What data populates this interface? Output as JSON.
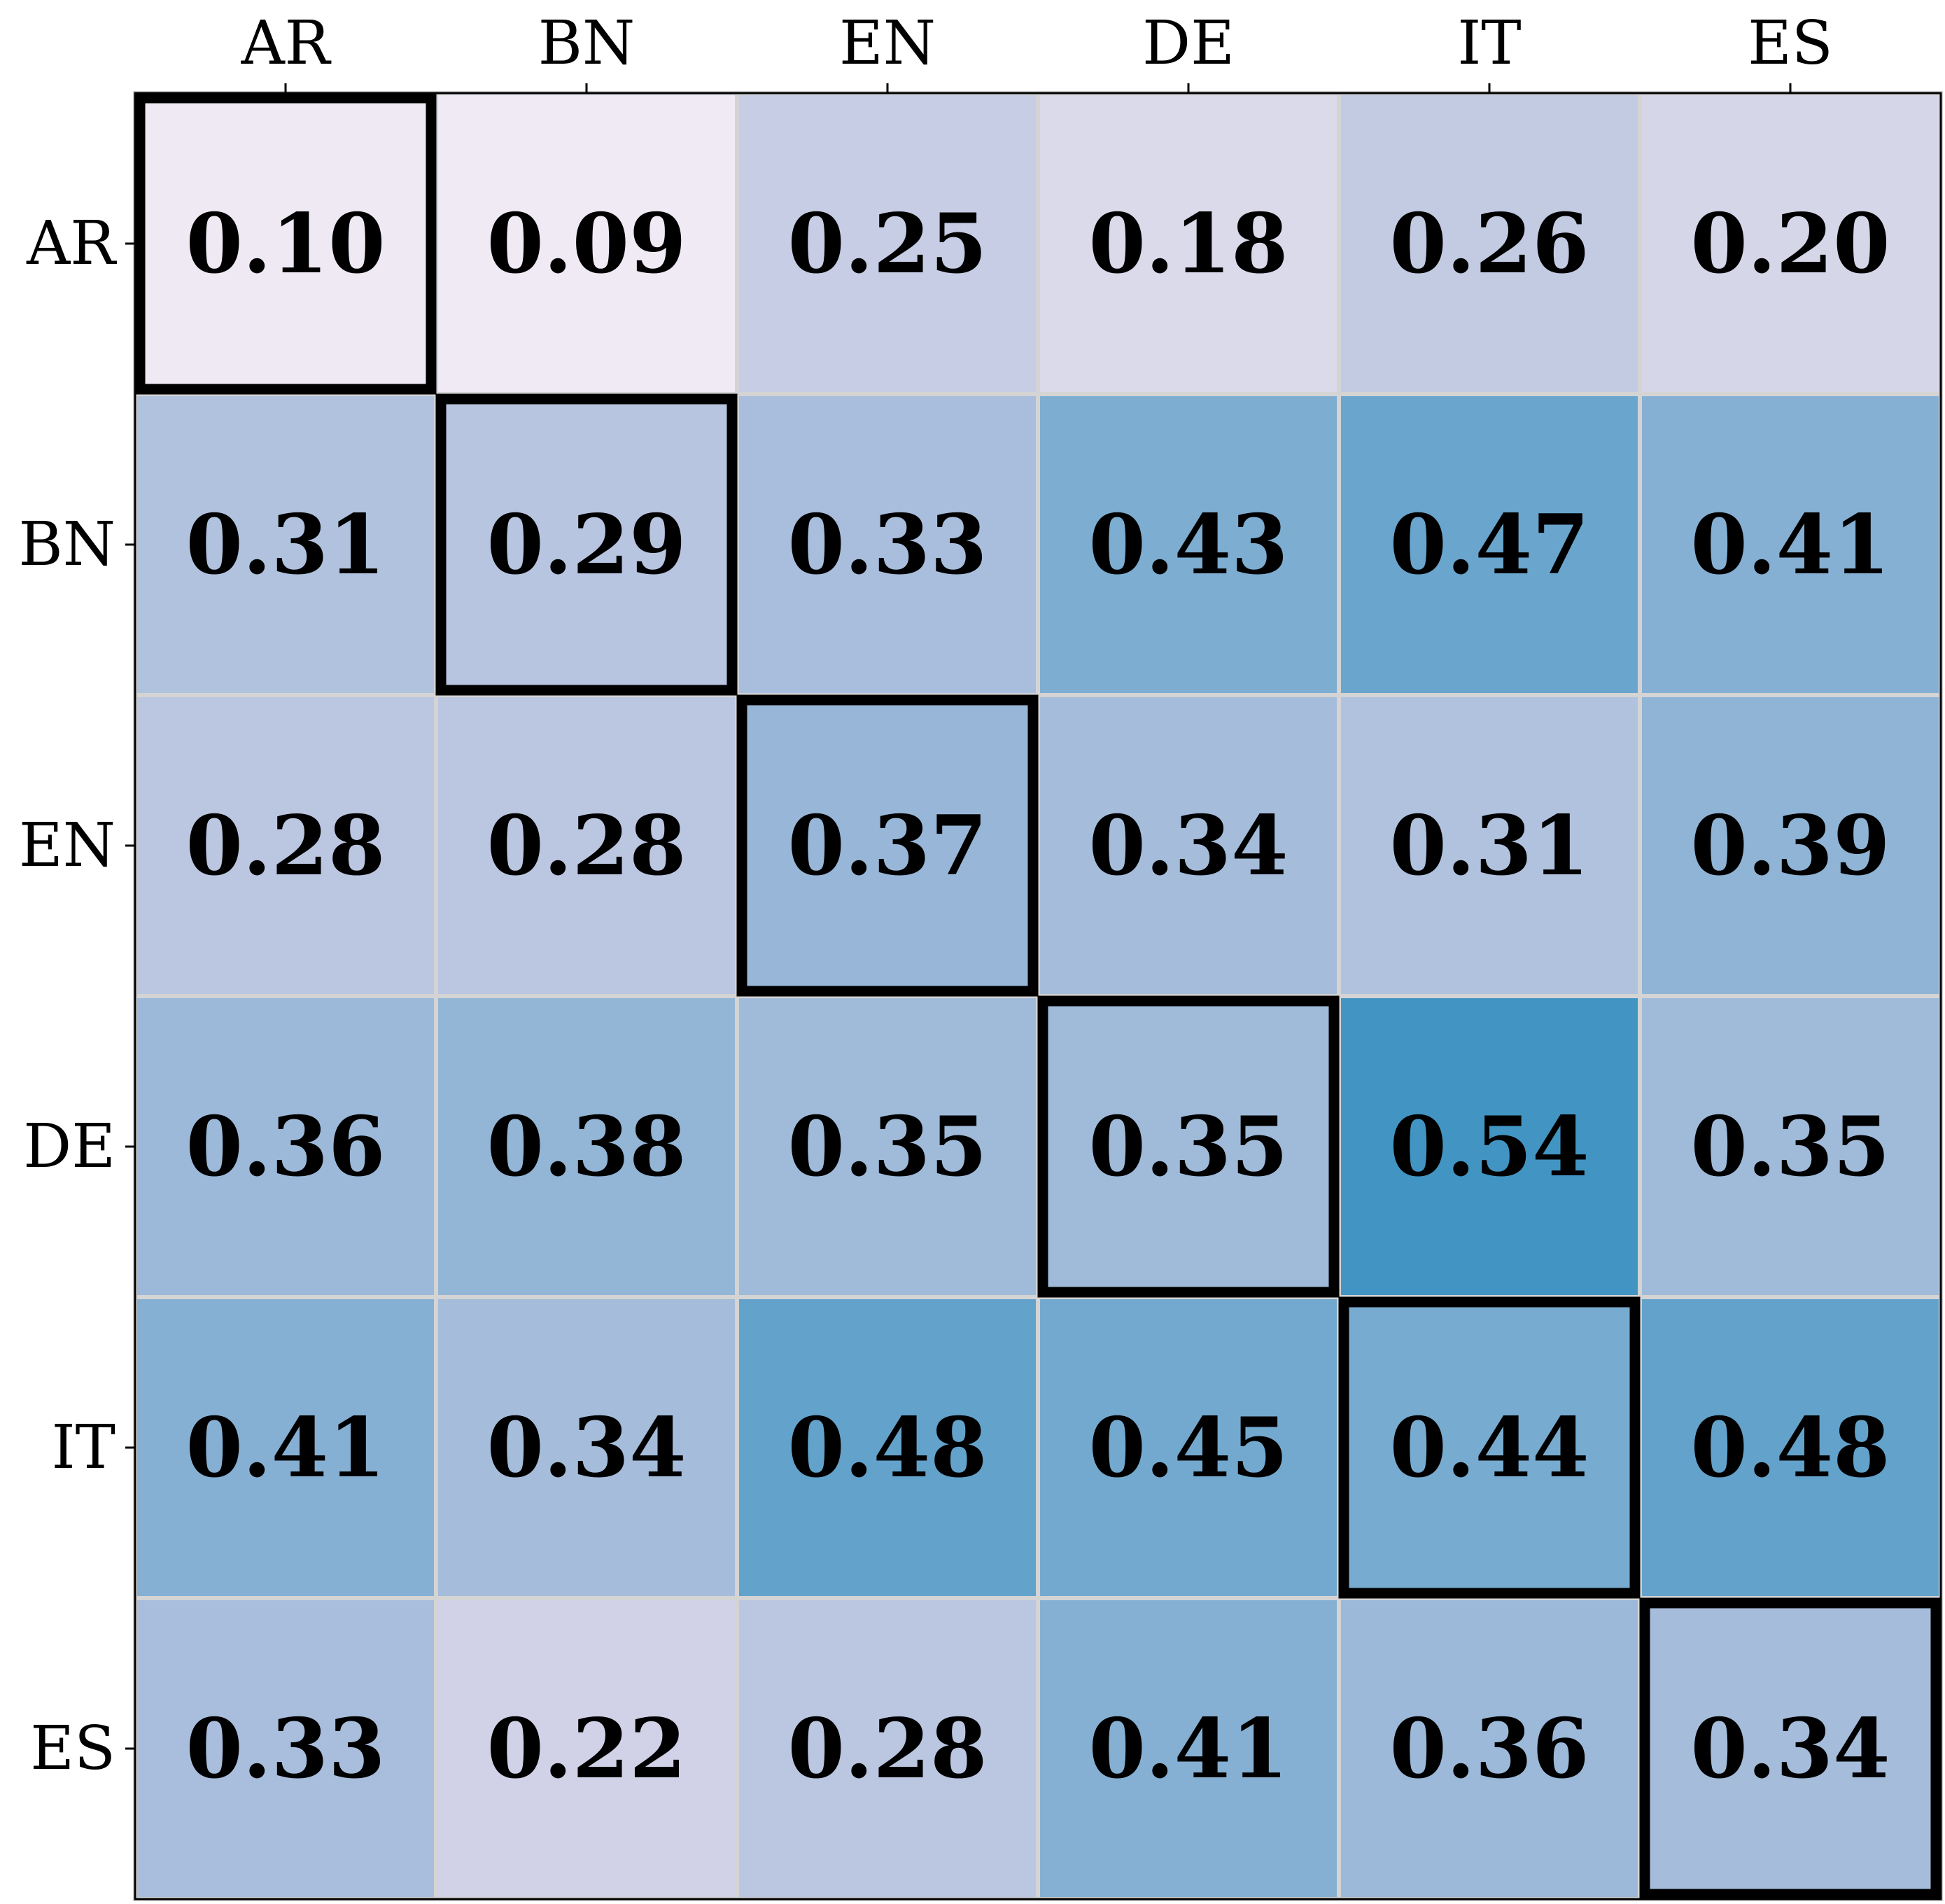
{
  "chart_data": {
    "type": "heatmap",
    "title": "",
    "xlabel": "",
    "ylabel": "",
    "x_categories": [
      "AR",
      "BN",
      "EN",
      "DE",
      "IT",
      "ES"
    ],
    "y_categories": [
      "AR",
      "BN",
      "EN",
      "DE",
      "IT",
      "ES"
    ],
    "values": [
      [
        0.1,
        0.09,
        0.25,
        0.18,
        0.26,
        0.2
      ],
      [
        0.31,
        0.29,
        0.33,
        0.43,
        0.47,
        0.41
      ],
      [
        0.28,
        0.28,
        0.37,
        0.34,
        0.31,
        0.39
      ],
      [
        0.36,
        0.38,
        0.35,
        0.35,
        0.54,
        0.35
      ],
      [
        0.41,
        0.34,
        0.48,
        0.45,
        0.44,
        0.48
      ],
      [
        0.33,
        0.22,
        0.28,
        0.41,
        0.36,
        0.34
      ]
    ],
    "value_format": "2 decimals",
    "x_axis_position": "top",
    "colormap": "PuBu",
    "color_range": [
      0.0,
      0.9
    ],
    "highlight": "diagonal cells outlined in black",
    "grid": true
  }
}
